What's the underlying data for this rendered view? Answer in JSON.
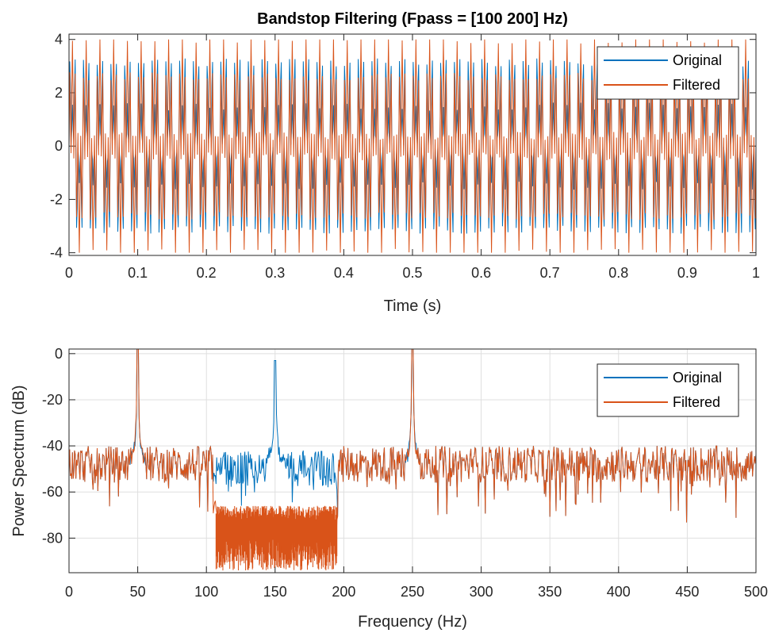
{
  "colors": {
    "original": "#0072BD",
    "filtered": "#D95319",
    "axis": "#262626",
    "grid": "#DFDFDF"
  },
  "chart_data": [
    {
      "type": "line",
      "title": "Bandstop Filtering  (Fpass = [100 200] Hz)",
      "xlabel": "Time (s)",
      "ylabel": "",
      "xlim": [
        0,
        1
      ],
      "ylim": [
        -4.1,
        4.2
      ],
      "xticks": [
        0,
        0.1,
        0.2,
        0.3,
        0.4,
        0.5,
        0.6,
        0.7,
        0.8,
        0.9,
        1
      ],
      "yticks": [
        -4,
        -2,
        0,
        2,
        4
      ],
      "xtick_labels": [
        "0",
        "0.1",
        "0.2",
        "0.3",
        "0.4",
        "0.5",
        "0.6",
        "0.7",
        "0.8",
        "0.9",
        "1"
      ],
      "ytick_labels": [
        "-4",
        "-2",
        "0",
        "2",
        "4"
      ],
      "grid": false,
      "legend_position": "top-right",
      "series": [
        {
          "name": "Original",
          "color": "#0072BD",
          "description_signal_components_hz": [
            50,
            150,
            250
          ],
          "amplitude_range": [
            -3.7,
            3.9
          ]
        },
        {
          "name": "Filtered",
          "color": "#D95319",
          "description_signal_components_hz": [
            50,
            250
          ],
          "amplitude_range": [
            -4.0,
            4.0
          ]
        }
      ]
    },
    {
      "type": "line",
      "title": "",
      "xlabel": "Frequency (Hz)",
      "ylabel": "Power Spectrum (dB)",
      "xlim": [
        0,
        500
      ],
      "ylim": [
        -95,
        2
      ],
      "xticks": [
        0,
        50,
        100,
        150,
        200,
        250,
        300,
        350,
        400,
        450,
        500
      ],
      "yticks": [
        -80,
        -60,
        -40,
        -20,
        0
      ],
      "xtick_labels": [
        "0",
        "50",
        "100",
        "150",
        "200",
        "250",
        "300",
        "350",
        "400",
        "450",
        "500"
      ],
      "ytick_labels": [
        "-80",
        "-60",
        "-40",
        "-20",
        "0"
      ],
      "grid": true,
      "legend_position": "top-right",
      "series": [
        {
          "name": "Original",
          "color": "#0072BD",
          "peaks": [
            {
              "x": 50,
              "y": 2
            },
            {
              "x": 150,
              "y": -3
            },
            {
              "x": 250,
              "y": 2
            }
          ],
          "noise_floor_db": [
            -65,
            -38
          ]
        },
        {
          "name": "Filtered",
          "color": "#D95319",
          "peaks": [
            {
              "x": 50,
              "y": 2
            },
            {
              "x": 250,
              "y": 2
            }
          ],
          "stopband_hz": [
            105,
            195
          ],
          "stopband_level_db": [
            -95,
            -66
          ],
          "noise_floor_db": [
            -65,
            -38
          ]
        }
      ]
    }
  ]
}
